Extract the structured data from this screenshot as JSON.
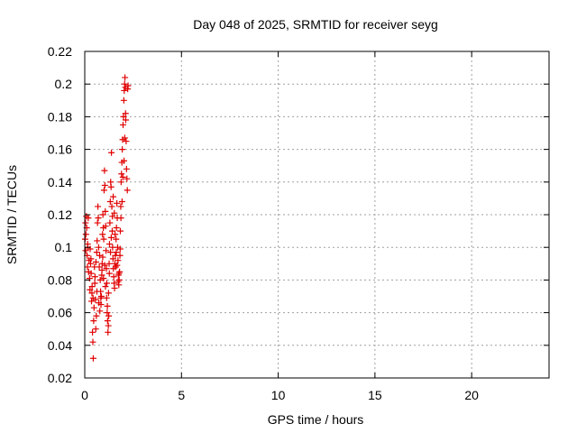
{
  "chart_data": {
    "type": "scatter",
    "title": "Day 048 of 2025, SRMTID for receiver seyg",
    "xlabel": "GPS time / hours",
    "ylabel": "SRMTID / TECUs",
    "xlim": [
      0,
      24
    ],
    "ylim": [
      0.02,
      0.22
    ],
    "xticks": [
      0,
      5,
      10,
      15,
      20
    ],
    "xtick_labels": [
      "0",
      "5",
      "10",
      "15",
      "20"
    ],
    "yticks": [
      0.02,
      0.04,
      0.06,
      0.08,
      0.1,
      0.12,
      0.14,
      0.16,
      0.18,
      0.2,
      0.22
    ],
    "ytick_labels": [
      "0.02",
      "0.04",
      "0.06",
      "0.08",
      "0.1",
      "0.12",
      "0.14",
      "0.16",
      "0.18",
      "0.2",
      "0.22"
    ],
    "grid": true,
    "marker": "+",
    "series": [
      {
        "name": "SRMTID",
        "color": "#e00000",
        "points": [
          [
            0.02,
            0.105
          ],
          [
            0.04,
            0.115
          ],
          [
            0.06,
            0.108
          ],
          [
            0.08,
            0.119
          ],
          [
            0.1,
            0.112
          ],
          [
            0.12,
            0.095
          ],
          [
            0.14,
            0.088
          ],
          [
            0.16,
            0.1
          ],
          [
            0.18,
            0.118
          ],
          [
            0.2,
            0.085
          ],
          [
            0.22,
            0.092
          ],
          [
            0.25,
            0.081
          ],
          [
            0.27,
            0.074
          ],
          [
            0.3,
            0.09
          ],
          [
            0.32,
            0.093
          ],
          [
            0.35,
            0.067
          ],
          [
            0.37,
            0.072
          ],
          [
            0.4,
            0.048
          ],
          [
            0.42,
            0.042
          ],
          [
            0.44,
            0.032
          ],
          [
            0.46,
            0.055
          ],
          [
            0.48,
            0.063
          ],
          [
            0.5,
            0.088
          ],
          [
            0.52,
            0.078
          ],
          [
            0.55,
            0.068
          ],
          [
            0.57,
            0.05
          ],
          [
            0.6,
            0.058
          ],
          [
            0.62,
            0.097
          ],
          [
            0.64,
            0.104
          ],
          [
            0.66,
            0.115
          ],
          [
            0.68,
            0.125
          ],
          [
            0.7,
            0.118
          ],
          [
            0.72,
            0.1
          ],
          [
            0.75,
            0.088
          ],
          [
            0.77,
            0.095
          ],
          [
            0.8,
            0.08
          ],
          [
            0.82,
            0.073
          ],
          [
            0.84,
            0.065
          ],
          [
            0.86,
            0.07
          ],
          [
            0.88,
            0.083
          ],
          [
            0.9,
            0.09
          ],
          [
            0.92,
            0.108
          ],
          [
            0.94,
            0.12
          ],
          [
            0.96,
            0.112
          ],
          [
            0.98,
            0.105
          ],
          [
            1.0,
            0.135
          ],
          [
            1.02,
            0.147
          ],
          [
            1.04,
            0.138
          ],
          [
            1.06,
            0.122
          ],
          [
            1.08,
            0.113
          ],
          [
            1.1,
            0.098
          ],
          [
            1.12,
            0.087
          ],
          [
            1.14,
            0.078
          ],
          [
            1.16,
            0.06
          ],
          [
            1.18,
            0.055
          ],
          [
            1.2,
            0.048
          ],
          [
            1.22,
            0.052
          ],
          [
            1.24,
            0.058
          ],
          [
            1.26,
            0.09
          ],
          [
            1.28,
            0.102
          ],
          [
            1.3,
            0.115
          ],
          [
            1.32,
            0.128
          ],
          [
            1.34,
            0.14
          ],
          [
            1.36,
            0.137
          ],
          [
            1.38,
            0.158
          ],
          [
            1.4,
            0.125
          ],
          [
            1.42,
            0.11
          ],
          [
            1.44,
            0.1
          ],
          [
            1.46,
            0.093
          ],
          [
            1.48,
            0.087
          ],
          [
            1.5,
            0.082
          ],
          [
            1.52,
            0.078
          ],
          [
            1.54,
            0.075
          ],
          [
            1.56,
            0.09
          ],
          [
            1.58,
            0.095
          ],
          [
            1.6,
            0.088
          ],
          [
            1.62,
            0.105
          ],
          [
            1.64,
            0.112
          ],
          [
            1.66,
            0.127
          ],
          [
            1.68,
            0.118
          ],
          [
            1.7,
            0.1
          ],
          [
            1.72,
            0.092
          ],
          [
            1.74,
            0.083
          ],
          [
            1.76,
            0.077
          ],
          [
            1.78,
            0.08
          ],
          [
            1.8,
            0.085
          ],
          [
            1.82,
            0.095
          ],
          [
            1.84,
            0.11
          ],
          [
            1.86,
            0.125
          ],
          [
            1.88,
            0.14
          ],
          [
            1.9,
            0.145
          ],
          [
            1.92,
            0.152
          ],
          [
            1.94,
            0.16
          ],
          [
            1.96,
            0.166
          ],
          [
            1.98,
            0.175
          ],
          [
            2.0,
            0.18
          ],
          [
            2.02,
            0.19
          ],
          [
            2.04,
            0.196
          ],
          [
            2.06,
            0.2
          ],
          [
            2.08,
            0.204
          ],
          [
            2.1,
            0.198
          ],
          [
            2.12,
            0.178
          ],
          [
            2.14,
            0.165
          ],
          [
            2.16,
            0.148
          ],
          [
            2.18,
            0.142
          ],
          [
            2.2,
            0.135
          ],
          [
            2.22,
            0.197
          ],
          [
            2.24,
            0.199
          ],
          [
            0.05,
            0.098
          ],
          [
            0.15,
            0.102
          ],
          [
            0.28,
            0.099
          ],
          [
            0.33,
            0.084
          ],
          [
            0.38,
            0.076
          ],
          [
            0.43,
            0.069
          ],
          [
            0.53,
            0.082
          ],
          [
            0.58,
            0.091
          ],
          [
            0.63,
            0.073
          ],
          [
            0.73,
            0.066
          ],
          [
            0.78,
            0.061
          ],
          [
            0.83,
            0.069
          ],
          [
            0.89,
            0.086
          ],
          [
            0.93,
            0.094
          ],
          [
            0.97,
            0.081
          ],
          [
            1.03,
            0.089
          ],
          [
            1.07,
            0.076
          ],
          [
            1.13,
            0.069
          ],
          [
            1.17,
            0.064
          ],
          [
            1.23,
            0.072
          ],
          [
            1.27,
            0.084
          ],
          [
            1.33,
            0.097
          ],
          [
            1.37,
            0.106
          ],
          [
            1.43,
            0.119
          ],
          [
            1.47,
            0.131
          ],
          [
            1.53,
            0.121
          ],
          [
            1.57,
            0.108
          ],
          [
            1.63,
            0.097
          ],
          [
            1.67,
            0.089
          ],
          [
            1.73,
            0.079
          ],
          [
            1.77,
            0.084
          ],
          [
            1.83,
            0.099
          ],
          [
            1.87,
            0.118
          ],
          [
            1.93,
            0.128
          ],
          [
            1.97,
            0.143
          ],
          [
            2.03,
            0.153
          ],
          [
            2.07,
            0.167
          ],
          [
            2.11,
            0.182
          ]
        ]
      }
    ]
  }
}
